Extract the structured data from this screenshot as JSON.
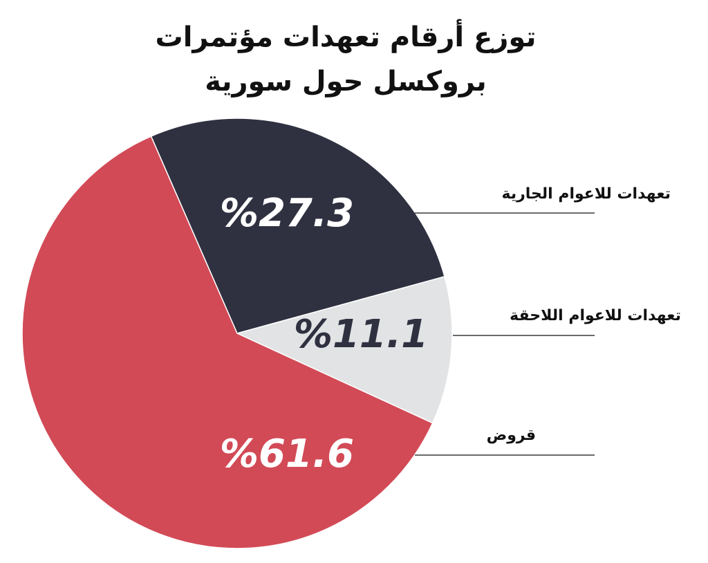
{
  "chart_data": {
    "type": "pie",
    "title": "توزع أرقام تعهدات مؤتمرات بروكسل حول سورية",
    "categories": [
      "تعهدات للاعوام الجارية",
      "تعهدات للاعوام اللاحقة",
      "قروض"
    ],
    "values": [
      27.3,
      11.1,
      61.6
    ],
    "value_labels": [
      "%27.3",
      "%11.1",
      "%61.6"
    ],
    "colors": [
      "#2f3040",
      "#e2e3e5",
      "#d24a56"
    ]
  }
}
